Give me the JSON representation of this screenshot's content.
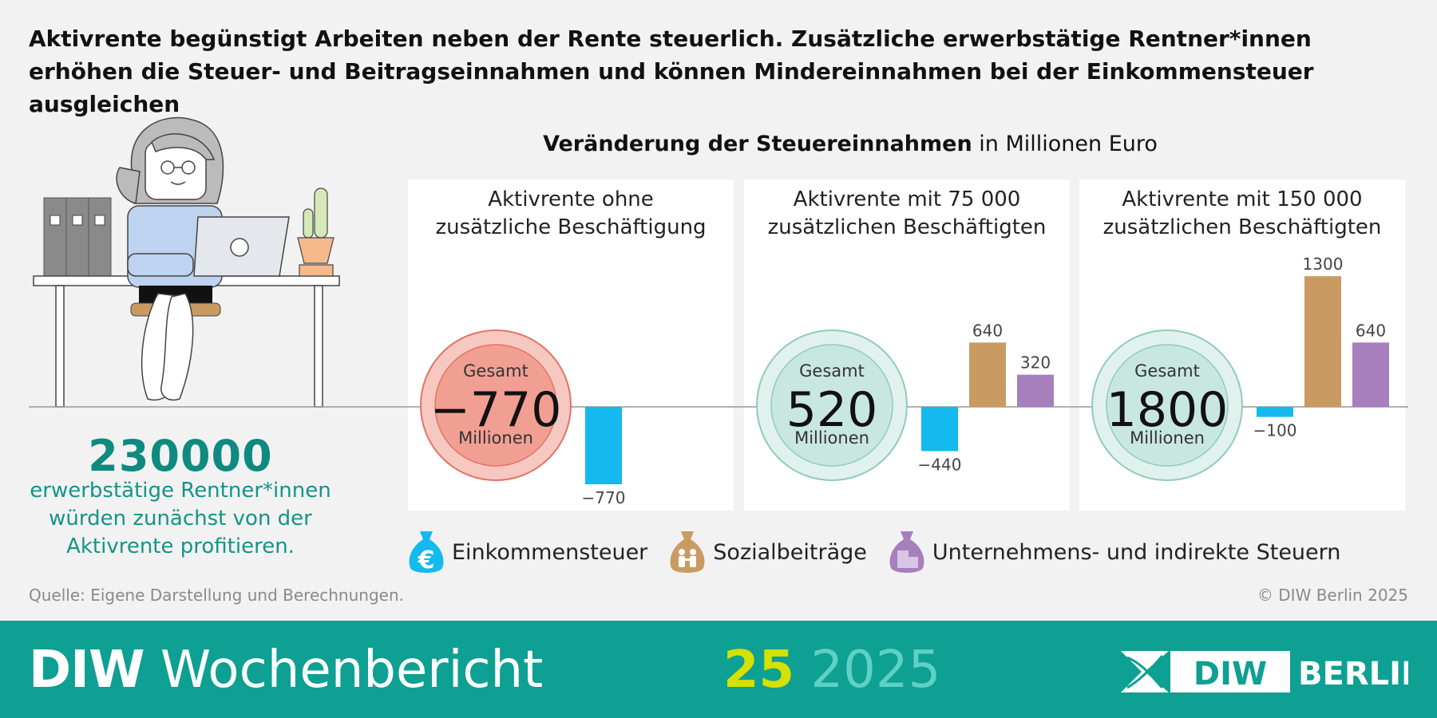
{
  "headline": "Aktivrente begünstigt Arbeiten neben der Rente steuerlich. Zusätzliche erwerbstätige Rentner*innen erhöhen die Steuer- und Beitragseinnahmen und können Mindereinnahmen bei der Einkommensteuer ausgleichen",
  "subtitle": {
    "bold": "Veränderung der Steuereinnahmen",
    "unit": "in Millionen Euro"
  },
  "left_info": {
    "number": "230000",
    "caption": [
      "erwerbstätige Rentner*innen",
      "würden zunächst von der",
      "Aktivrente profitieren."
    ]
  },
  "colors": {
    "einkommensteuer": "#14b9ee",
    "sozialbeitraege": "#c99a62",
    "unternehmen": "#a77fbd",
    "negative_circle": "#f19f93",
    "positive_circle": "#c9e7e1",
    "teal_text": "#0e8a80",
    "footer": "#0ea092"
  },
  "chart_data": {
    "type": "bar",
    "title": "Veränderung der Steuereinnahmen in Millionen Euro",
    "ylim": [
      -770,
      1300
    ],
    "series_names": [
      "Einkommensteuer",
      "Sozialbeiträge",
      "Unternehmens- und indirekte Steuern"
    ],
    "panels": [
      {
        "title": [
          "Aktivrente ohne",
          "zusätzliche Beschäftigung"
        ],
        "total_label": "Gesamt",
        "total": "−770",
        "total_unit": "Millionen",
        "total_value": -770,
        "bars": [
          {
            "series": "Einkommensteuer",
            "value": -770,
            "label": "−770"
          }
        ]
      },
      {
        "title": [
          "Aktivrente mit 75 000",
          "zusätzlichen Beschäftigten"
        ],
        "total_label": "Gesamt",
        "total": "520",
        "total_unit": "Millionen",
        "total_value": 520,
        "bars": [
          {
            "series": "Einkommensteuer",
            "value": -440,
            "label": "−440"
          },
          {
            "series": "Sozialbeiträge",
            "value": 640,
            "label": "640"
          },
          {
            "series": "Unternehmens- und indirekte Steuern",
            "value": 320,
            "label": "320"
          }
        ]
      },
      {
        "title": [
          "Aktivrente mit 150 000",
          "zusätzlichen Beschäftigten"
        ],
        "total_label": "Gesamt",
        "total": "1800",
        "total_unit": "Millionen",
        "total_value": 1800,
        "bars": [
          {
            "series": "Einkommensteuer",
            "value": -100,
            "label": "−100"
          },
          {
            "series": "Sozialbeiträge",
            "value": 1300,
            "label": "1300"
          },
          {
            "series": "Unternehmens- und indirekte Steuern",
            "value": 640,
            "label": "640"
          }
        ]
      }
    ]
  },
  "legend": [
    {
      "label": "Einkommensteuer",
      "icon": "euro-moneybag-icon"
    },
    {
      "label": "Sozialbeiträge",
      "icon": "family-moneybag-icon"
    },
    {
      "label": "Unternehmens- und indirekte Steuern",
      "icon": "building-moneybag-icon"
    }
  ],
  "source": "Quelle: Eigene Darstellung und Berechnungen.",
  "copyright": "© DIW Berlin 2025",
  "footer": {
    "brand_bold": "DIW",
    "brand_rest": "Wochenbericht",
    "issue_number": "25",
    "issue_year": "2025",
    "logo_text_1": "DIW",
    "logo_text_2": "BERLIN"
  }
}
